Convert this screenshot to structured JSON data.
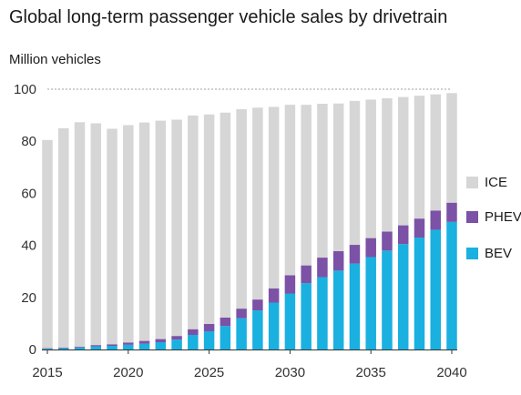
{
  "title": "Global long-term passenger vehicle sales by drivetrain",
  "unit_label": "Million vehicles",
  "colors": {
    "BEV": "#1ab0e0",
    "PHEV": "#7b52a6",
    "ICE": "#d6d6d6"
  },
  "chart_data": {
    "type": "bar",
    "stacked": true,
    "x": [
      2015,
      2016,
      2017,
      2018,
      2019,
      2020,
      2021,
      2022,
      2023,
      2024,
      2025,
      2026,
      2027,
      2028,
      2029,
      2030,
      2031,
      2032,
      2033,
      2034,
      2035,
      2036,
      2037,
      2038,
      2039,
      2040
    ],
    "series": [
      {
        "name": "BEV",
        "values": [
          0.3,
          0.5,
          0.8,
          1.2,
          1.4,
          1.8,
          2.2,
          2.8,
          3.8,
          5.6,
          7,
          9,
          12,
          15,
          18,
          21.5,
          25.5,
          27.8,
          30.3,
          33,
          35.5,
          38,
          40.5,
          43,
          46,
          49
        ]
      },
      {
        "name": "PHEV",
        "values": [
          0.2,
          0.2,
          0.3,
          0.5,
          0.6,
          0.9,
          1.1,
          1.2,
          1.4,
          2.2,
          2.8,
          3.3,
          3.7,
          4.2,
          5.5,
          7,
          6.8,
          7.5,
          7.5,
          7.2,
          7.3,
          7.3,
          7.2,
          7.3,
          7.4,
          7.4
        ]
      },
      {
        "name": "ICE",
        "values": [
          80,
          84.3,
          86.2,
          85.2,
          82.8,
          83.5,
          83.9,
          83.9,
          83.1,
          82.1,
          80.5,
          78.7,
          76.6,
          73.7,
          69.7,
          65.5,
          61.7,
          59.1,
          56.7,
          55.3,
          53.2,
          51.2,
          49.3,
          47.2,
          44.6,
          42.1
        ]
      }
    ],
    "ylim": [
      0,
      100
    ],
    "yticks": [
      0,
      20,
      40,
      60,
      80,
      100
    ],
    "xticks": [
      2015,
      2020,
      2025,
      2030,
      2035,
      2040
    ],
    "ylabel": "Million vehicles",
    "grid": "dotted line at 100 only",
    "legend": [
      "ICE",
      "PHEV",
      "BEV"
    ],
    "legend_placement": "right"
  }
}
